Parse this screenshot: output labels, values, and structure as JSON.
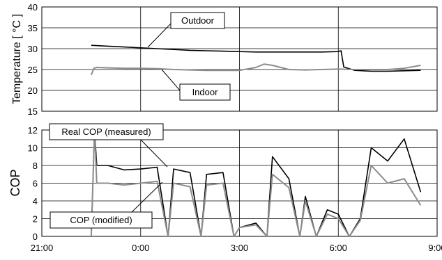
{
  "chart_data": [
    {
      "type": "line",
      "ylabel": "Temperature [ °C ]",
      "ylim": [
        15,
        40
      ],
      "yticks": [
        "15",
        "20",
        "25",
        "30",
        "35",
        "40"
      ],
      "xlim": [
        "21:00",
        "09:00"
      ],
      "grid": true,
      "series": [
        {
          "name": "Outdoor",
          "color": "#000000",
          "x": [
            "22:30",
            "23:00",
            "23:30",
            "0:00",
            "0:30",
            "1:00",
            "1:30",
            "2:00",
            "2:30",
            "3:00",
            "3:30",
            "4:00",
            "4:30",
            "5:00",
            "5:30",
            "6:00",
            "6:05",
            "6:10",
            "6:20",
            "6:30",
            "7:00",
            "7:30",
            "8:00",
            "8:30"
          ],
          "values": [
            30.8,
            30.6,
            30.4,
            30.2,
            30.0,
            29.8,
            29.6,
            29.5,
            29.4,
            29.3,
            29.2,
            29.2,
            29.2,
            29.2,
            29.2,
            29.3,
            29.5,
            25.6,
            25.2,
            24.8,
            24.6,
            24.6,
            24.7,
            24.8
          ]
        },
        {
          "name": "Indoor",
          "color": "#8c8c8c",
          "x": [
            "22:30",
            "22:35",
            "22:40",
            "23:00",
            "23:30",
            "0:00",
            "0:30",
            "1:00",
            "1:30",
            "2:00",
            "2:30",
            "3:00",
            "3:30",
            "3:45",
            "4:00",
            "4:30",
            "5:00",
            "5:30",
            "6:00",
            "6:30",
            "7:00",
            "7:30",
            "8:00",
            "8:30"
          ],
          "values": [
            23.7,
            25.3,
            25.5,
            25.4,
            25.3,
            25.3,
            25.2,
            25.0,
            24.9,
            24.8,
            24.8,
            24.8,
            25.5,
            26.3,
            26.0,
            25.0,
            24.9,
            25.0,
            25.1,
            25.0,
            25.0,
            25.0,
            25.3,
            26.0
          ]
        }
      ],
      "callouts": [
        "Outdoor",
        "Indoor"
      ]
    },
    {
      "type": "line",
      "ylabel": "COP",
      "ylim": [
        0,
        12
      ],
      "yticks": [
        "0",
        "2",
        "4",
        "6",
        "8",
        "10",
        "12"
      ],
      "xlim": [
        "21:00",
        "09:00"
      ],
      "xticks": [
        "21:00",
        "0:00",
        "3:00",
        "6:00",
        "9:00"
      ],
      "grid": true,
      "series": [
        {
          "name": "Real COP (measured)",
          "color": "#000000",
          "x": [
            "22:30",
            "22:36",
            "22:40",
            "23:00",
            "23:30",
            "0:00",
            "0:30",
            "0:50",
            "1:00",
            "1:30",
            "1:50",
            "2:00",
            "2:30",
            "2:50",
            "3:00",
            "3:30",
            "3:50",
            "4:00",
            "4:30",
            "4:50",
            "5:00",
            "5:20",
            "5:40",
            "6:00",
            "6:20",
            "6:40",
            "7:00",
            "7:30",
            "8:00",
            "8:30"
          ],
          "values": [
            0,
            12,
            8,
            8,
            7.5,
            7.6,
            7.8,
            0,
            7.6,
            7.2,
            0,
            7.0,
            7.2,
            0,
            1.0,
            1.5,
            0,
            9.0,
            6.5,
            0,
            4.5,
            0,
            3.0,
            2.5,
            0,
            2.0,
            10,
            8.5,
            11,
            5.0
          ]
        },
        {
          "name": "COP (modified)",
          "color": "#8c8c8c",
          "x": [
            "22:30",
            "22:36",
            "22:40",
            "23:00",
            "23:30",
            "0:00",
            "0:30",
            "0:50",
            "1:00",
            "1:30",
            "1:50",
            "2:00",
            "2:30",
            "2:50",
            "3:00",
            "3:30",
            "3:50",
            "4:00",
            "4:30",
            "4:50",
            "5:00",
            "5:20",
            "5:40",
            "6:00",
            "6:20",
            "6:40",
            "7:00",
            "7:30",
            "8:00",
            "8:30"
          ],
          "values": [
            0,
            12,
            6,
            6,
            5.8,
            6.0,
            6.2,
            0,
            6.0,
            5.6,
            0,
            5.8,
            6.0,
            0,
            1.0,
            1.3,
            0,
            7.0,
            5.5,
            0,
            4.0,
            0,
            2.5,
            2.0,
            0,
            1.8,
            8,
            6.0,
            6.5,
            3.5
          ]
        }
      ],
      "callouts": [
        "Real COP (measured)",
        "COP (modified)"
      ]
    }
  ]
}
